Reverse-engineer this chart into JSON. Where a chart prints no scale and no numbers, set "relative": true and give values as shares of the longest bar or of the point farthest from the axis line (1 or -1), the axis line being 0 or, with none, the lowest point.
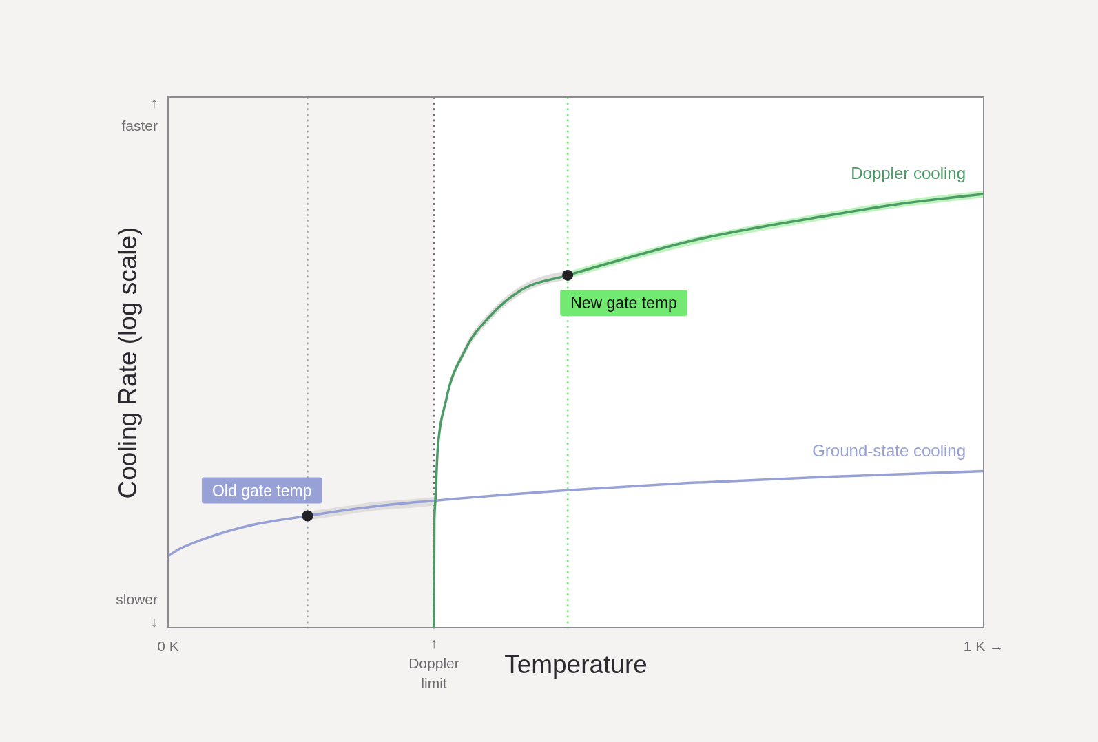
{
  "chart_data": {
    "type": "line",
    "xlabel": "Temperature",
    "ylabel": "Cooling Rate (log scale)",
    "relative": true,
    "xlim": [
      0,
      1
    ],
    "xticks": [
      {
        "value": 0,
        "label": "0 K"
      },
      {
        "value": 1,
        "label": "1 K →"
      }
    ],
    "series": [
      {
        "color": "#e0dedc",
        "x": [
          0.171,
          0.2,
          0.258,
          0.3277,
          0.3307,
          0.341,
          0.3633,
          0.396,
          0.4315,
          0.49
        ],
        "values": [
          null,
          null,
          null,
          null,
          null,
          null,
          null,
          null,
          null,
          null
        ],
        "lower": [
          0.248,
          0.256,
          0.271,
          0.283,
          0.405,
          0.516,
          0.627,
          0.711,
          0.767,
          0.803
        ],
        "upper": [
          0.268,
          0.276,
          0.291,
          0.303,
          0.425,
          0.536,
          0.647,
          0.731,
          0.787,
          0.823
        ]
      },
      {
        "color": "#bff4bf",
        "x": [
          0.49,
          0.554,
          0.6385,
          0.807,
          0.892,
          1
        ],
        "values": [
          null,
          null,
          null,
          null,
          null,
          null
        ],
        "lower": [
          0.805,
          0.84,
          0.881,
          0.942,
          0.968,
          0.992
        ],
        "upper": [
          0.821,
          0.856,
          0.897,
          0.958,
          0.984,
          1.008
        ]
      },
      {
        "name": "Ground-state cooling",
        "color": "#98a1d5",
        "x": [
          0,
          0.012,
          0.033,
          0.0895,
          0.171,
          0.258,
          0.326,
          0.49,
          0.6385,
          0.807,
          1
        ],
        "values": [
          0.165,
          0.18,
          0.197,
          0.231,
          0.258,
          0.281,
          0.293,
          0.317,
          0.334,
          0.348,
          0.361
        ]
      },
      {
        "name": "Doppler cooling",
        "color": "#4b9b66",
        "x": [
          0.326,
          0.3265,
          0.3277,
          0.3307,
          0.341,
          0.3633,
          0.396,
          0.4315,
          0.49,
          0.554,
          0.6385,
          0.807,
          0.892,
          1
        ],
        "values": [
          0,
          0.25,
          0.292,
          0.415,
          0.526,
          0.637,
          0.721,
          0.777,
          0.813,
          0.848,
          0.891,
          0.95,
          0.976,
          1
        ]
      }
    ],
    "bands": [
      {
        "axis": "x",
        "from": 0,
        "to": 0.326,
        "color": "#f5f3f1"
      }
    ],
    "ref_lines": [
      {
        "axis": "x",
        "value": 0.171,
        "color": "#a9a9ab",
        "line_style": "dotted"
      },
      {
        "axis": "x",
        "value": 0.326,
        "label": "↑ Doppler limit",
        "color": "#707074",
        "line_style": "dotted"
      },
      {
        "axis": "x",
        "value": 0.49,
        "color": "#72ea72",
        "line_style": "dotted"
      }
    ],
    "annotations": [
      "↑ faster",
      "slower ↓",
      {
        "text": "Old gate temp",
        "x": 0.171,
        "y": 0.258
      },
      {
        "text": "New gate temp",
        "x": 0.49,
        "y": 0.813
      }
    ],
    "legend": false,
    "grid": false,
    "marker": "none",
    "line_style": "solid"
  }
}
